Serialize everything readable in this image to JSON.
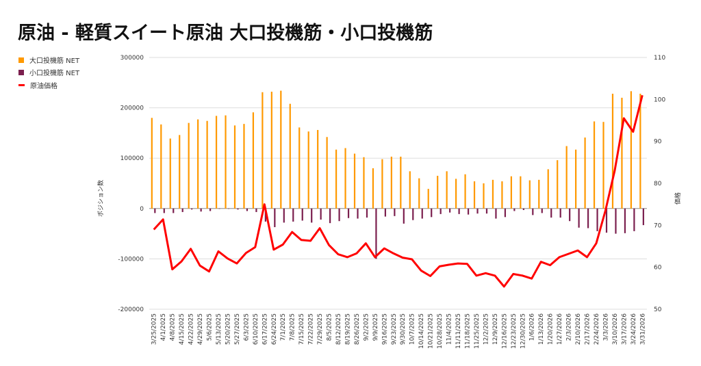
{
  "title": "原油 - 軽質スイート原油 大口投機筋・小口投機筋",
  "chart_data": {
    "type": "bar+line",
    "title": "原油 - 軽質スイート原油 大口投機筋・小口投機筋",
    "ylabel_left": "ポジション数",
    "ylabel_right": "価格",
    "ylim_left": [
      -200000,
      300000
    ],
    "ylim_right": [
      50,
      110
    ],
    "yticks_left": [
      "300000",
      "200000",
      "100000",
      "0",
      "-100000",
      "-200000"
    ],
    "yticks_right": [
      "110",
      "100",
      "90",
      "80",
      "70",
      "60",
      "50"
    ],
    "legend_position": "left",
    "grid": true,
    "categories": [
      "3/25/2025",
      "4/1/2025",
      "4/8/2025",
      "4/15/2025",
      "4/22/2025",
      "4/29/2025",
      "5/6/2025",
      "5/13/2025",
      "5/20/2025",
      "5/27/2025",
      "6/3/2025",
      "6/10/2025",
      "6/17/2025",
      "6/24/2025",
      "7/1/2025",
      "7/8/2025",
      "7/15/2025",
      "7/22/2025",
      "7/29/2025",
      "8/5/2025",
      "8/12/2025",
      "8/19/2025",
      "8/26/2025",
      "9/2/2025",
      "9/9/2025",
      "9/16/2025",
      "9/23/2025",
      "9/30/2025",
      "10/7/2025",
      "10/14/2025",
      "10/21/2025",
      "10/28/2025",
      "11/4/2025",
      "11/11/2025",
      "11/18/2025",
      "11/25/2025",
      "12/2/2025",
      "12/9/2025",
      "12/16/2025",
      "12/23/2025",
      "12/30/2025",
      "1/6/2026",
      "1/13/2026",
      "1/20/2026",
      "1/27/2026",
      "2/3/2026",
      "2/10/2026",
      "2/17/2026",
      "2/24/2026",
      "3/3/2026",
      "3/10/2026",
      "3/17/2026",
      "3/24/2026",
      "3/31/2026"
    ],
    "series": [
      {
        "name": "大口投機筋  NET",
        "type": "bar",
        "axis": "left",
        "color": "#ff9900",
        "values": [
          180000,
          167000,
          139000,
          146000,
          170000,
          177000,
          174000,
          184000,
          185000,
          165000,
          168000,
          191000,
          231000,
          232000,
          234000,
          208000,
          161000,
          153000,
          156000,
          142000,
          117000,
          120000,
          109000,
          102000,
          80000,
          98000,
          103000,
          103000,
          74000,
          60000,
          39000,
          65000,
          74000,
          59000,
          68000,
          54000,
          50000,
          57000,
          54000,
          64000,
          64000,
          56000,
          57000,
          78000,
          96000,
          124000,
          117000,
          141000,
          173000,
          172000,
          228000,
          220000,
          233000,
          228000
        ]
      },
      {
        "name": "小口投機筋  NET",
        "type": "bar",
        "axis": "left",
        "color": "#7b1f4e",
        "values": [
          -9000,
          -9000,
          -9000,
          -7000,
          -2000,
          -6000,
          -5000,
          0,
          0,
          -2000,
          -5000,
          -7000,
          -26000,
          -37000,
          -28000,
          -26000,
          -24000,
          -28000,
          -22000,
          -29000,
          -25000,
          -19000,
          -20000,
          -18000,
          -100000,
          -16000,
          -15000,
          -30000,
          -23000,
          -20000,
          -17000,
          -11000,
          -8000,
          -11000,
          -12000,
          -10000,
          -10000,
          -20000,
          -17000,
          -5000,
          -3000,
          -13000,
          -9000,
          -18000,
          -18000,
          -25000,
          -38000,
          -39000,
          -45000,
          -48000,
          -50000,
          -49000,
          -45000,
          -33000
        ]
      },
      {
        "name": "原油価格",
        "type": "line",
        "axis": "right",
        "color": "#ff0000",
        "values": [
          69.0,
          71.4,
          59.5,
          61.4,
          64.4,
          60.4,
          59.0,
          63.8,
          62.1,
          60.9,
          63.4,
          64.8,
          75.0,
          64.2,
          65.4,
          68.4,
          66.5,
          66.3,
          69.3,
          65.3,
          63.1,
          62.4,
          63.3,
          65.7,
          62.4,
          64.5,
          63.3,
          62.3,
          61.9,
          59.2,
          57.9,
          60.2,
          60.6,
          60.9,
          60.8,
          58.0,
          58.6,
          58.0,
          55.4,
          58.4,
          58.0,
          57.3,
          61.3,
          60.5,
          62.4,
          63.2,
          64.0,
          62.4,
          65.7,
          73.5,
          83.0,
          95.5,
          92.3,
          101.0
        ]
      }
    ]
  }
}
